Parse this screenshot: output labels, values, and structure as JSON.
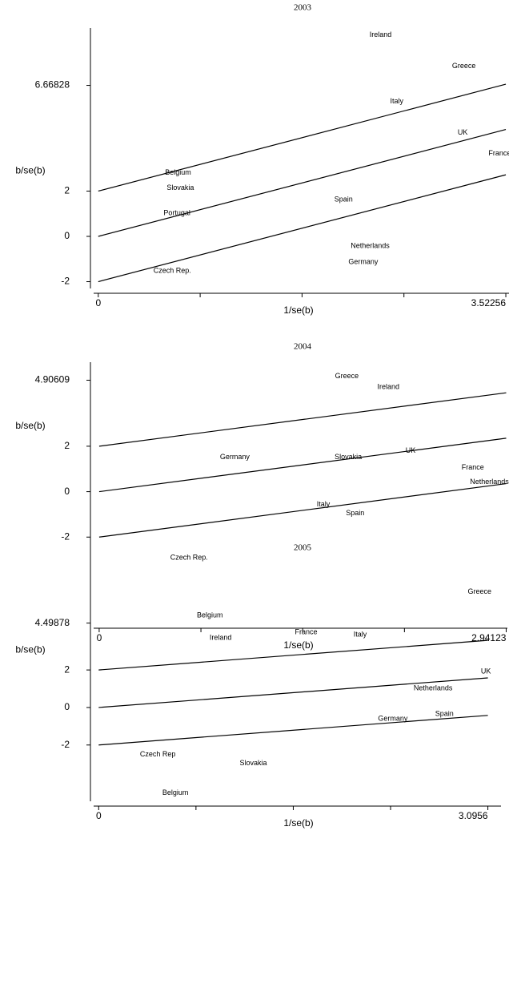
{
  "chart_data": [
    {
      "type": "scatter",
      "title": "2003",
      "x_label": "1/se(b)",
      "y_label": "b/se(b)",
      "xlim": [
        -0.04,
        3.55
      ],
      "ylim": [
        -2.3,
        9.2
      ],
      "xticks": [
        0,
        3.52256
      ],
      "xminorticks": [
        0.88064,
        1.76128,
        2.64192
      ],
      "yticks": [
        -2,
        0,
        2,
        6.66828
      ],
      "line_slope": 1.34,
      "line_offsets": [
        -2,
        0,
        2
      ],
      "points": [
        {
          "label": "Ireland",
          "x": 2.44,
          "y": 8.9
        },
        {
          "label": "Greece",
          "x": 3.16,
          "y": 7.52
        },
        {
          "label": "Italy",
          "x": 2.58,
          "y": 5.96
        },
        {
          "label": "UK",
          "x": 3.15,
          "y": 4.57
        },
        {
          "label": "France",
          "x": 3.47,
          "y": 3.65
        },
        {
          "label": "Belgium",
          "x": 0.69,
          "y": 2.8
        },
        {
          "label": "Slovakia",
          "x": 0.71,
          "y": 2.13
        },
        {
          "label": "Portugal",
          "x": 0.68,
          "y": 1.03
        },
        {
          "label": "Spain",
          "x": 2.12,
          "y": 1.63
        },
        {
          "label": "Netherlands",
          "x": 2.35,
          "y": -0.43
        },
        {
          "label": "Germany",
          "x": 2.29,
          "y": -1.13
        },
        {
          "label": "Czech Rep.",
          "x": 0.64,
          "y": -1.52
        }
      ]
    },
    {
      "type": "scatter",
      "title": "2004",
      "x_label": "1/se(b)",
      "y_label": "b/se(b)",
      "xlim": [
        -0.04,
        2.95
      ],
      "ylim": [
        -5.8,
        5.7
      ],
      "xticks": [
        0,
        2.94123
      ],
      "xminorticks": [
        0.73531,
        1.47062,
        2.20592
      ],
      "yticks": [
        -2,
        0,
        2,
        4.90609
      ],
      "line_slope": 0.8,
      "line_offsets": [
        -2,
        0,
        2
      ],
      "points": [
        {
          "label": "Greece",
          "x": 1.79,
          "y": 5.07
        },
        {
          "label": "Ireland",
          "x": 2.09,
          "y": 4.61
        },
        {
          "label": "Germany",
          "x": 0.98,
          "y": 1.51
        },
        {
          "label": "Slovakia",
          "x": 1.8,
          "y": 1.51
        },
        {
          "label": "UK",
          "x": 2.25,
          "y": 1.8
        },
        {
          "label": "France",
          "x": 2.7,
          "y": 1.06
        },
        {
          "label": "Netherlands",
          "x": 2.82,
          "y": 0.42
        },
        {
          "label": "Italy",
          "x": 1.62,
          "y": -0.56
        },
        {
          "label": "Spain",
          "x": 1.85,
          "y": -0.95
        },
        {
          "label": "Czech Rep.",
          "x": 0.65,
          "y": -2.92
        },
        {
          "label": "Belgium",
          "x": 0.8,
          "y": -5.46
        }
      ]
    },
    {
      "type": "scatter",
      "title": "2005",
      "x_label": "1/se(b)",
      "y_label": "b/se(b)",
      "xlim": [
        -0.04,
        3.2
      ],
      "ylim": [
        -5.0,
        7.6
      ],
      "xticks": [
        0,
        3.0956
      ],
      "xminorticks": [
        0.7739,
        1.5478,
        2.3217
      ],
      "yticks": [
        -2,
        0,
        2,
        4.49878
      ],
      "line_slope": 0.51,
      "line_offsets": [
        -2,
        0,
        2
      ],
      "points": [
        {
          "label": "Greece",
          "x": 3.03,
          "y": 6.17
        },
        {
          "label": "Ireland",
          "x": 0.97,
          "y": 3.7
        },
        {
          "label": "France",
          "x": 1.65,
          "y": 4.0
        },
        {
          "label": "Italy",
          "x": 2.08,
          "y": 3.87
        },
        {
          "label": "UK",
          "x": 3.08,
          "y": 1.91
        },
        {
          "label": "Netherlands",
          "x": 2.66,
          "y": 1.02
        },
        {
          "label": "Spain",
          "x": 2.75,
          "y": -0.34
        },
        {
          "label": "Germany",
          "x": 2.34,
          "y": -0.6
        },
        {
          "label": "Czech Rep",
          "x": 0.47,
          "y": -2.51
        },
        {
          "label": "Slovakia",
          "x": 1.23,
          "y": -2.98
        },
        {
          "label": "Belgium",
          "x": 0.61,
          "y": -4.55
        }
      ]
    }
  ]
}
